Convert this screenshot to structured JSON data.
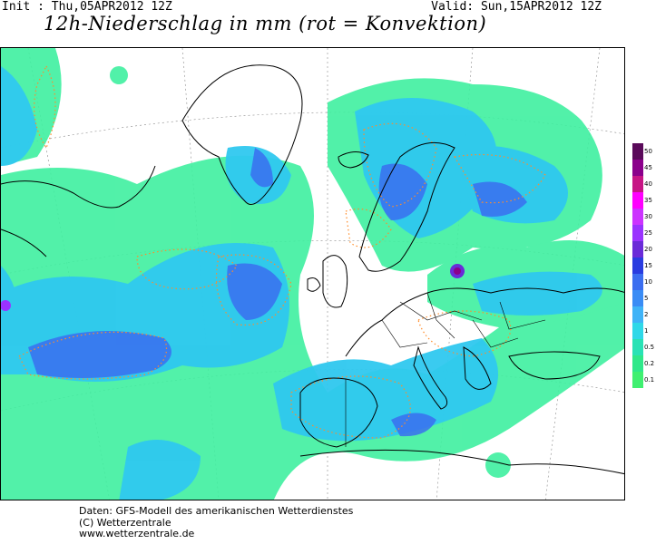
{
  "header": {
    "init": "Init : Thu,05APR2012 12Z",
    "valid": "Valid: Sun,15APR2012 12Z",
    "title": "12h-Niederschlag in mm (rot = Konvektion)"
  },
  "legend": {
    "levels": [
      {
        "label": "50",
        "color": "#5a0a5a"
      },
      {
        "label": "45",
        "color": "#8b008b"
      },
      {
        "label": "40",
        "color": "#c71585"
      },
      {
        "label": "35",
        "color": "#ff00ff"
      },
      {
        "label": "30",
        "color": "#cc33ff"
      },
      {
        "label": "25",
        "color": "#9a33ff"
      },
      {
        "label": "20",
        "color": "#6a2bd8"
      },
      {
        "label": "15",
        "color": "#2a3ce0"
      },
      {
        "label": "10",
        "color": "#3c6ef0"
      },
      {
        "label": "5",
        "color": "#3a8cf5"
      },
      {
        "label": "2",
        "color": "#3fb3f7"
      },
      {
        "label": "1",
        "color": "#2fd8e8"
      },
      {
        "label": "0.5",
        "color": "#29e2b5"
      },
      {
        "label": "0.2",
        "color": "#2fe88a"
      },
      {
        "label": "0.1",
        "color": "#3ff070"
      }
    ]
  },
  "footer": {
    "line1": "Daten: GFS-Modell des amerikanischen Wetterdienstes",
    "line2": "(C) Wetterzentrale",
    "line3": "www.wetterzentrale.de"
  }
}
